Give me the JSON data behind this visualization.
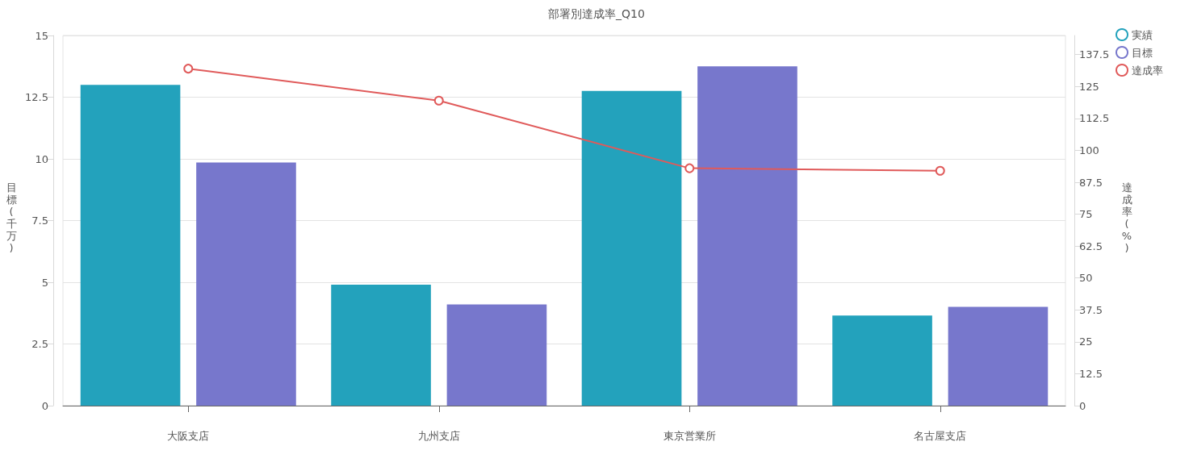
{
  "chart_data": {
    "type": "bar",
    "title": "部署別達成率_Q10",
    "ylabel": "目標(千万)",
    "y2label": "達成率(%)",
    "categories": [
      "大阪支店",
      "九州支店",
      "東京営業所",
      "名古屋支店"
    ],
    "series": [
      {
        "name": "実績",
        "color": "#23a2bc",
        "values": [
          13.0,
          4.9,
          12.75,
          3.65
        ]
      },
      {
        "name": "目標",
        "color": "#7777cc",
        "values": [
          9.85,
          4.1,
          13.75,
          4.0
        ]
      },
      {
        "name": "達成率",
        "type": "line",
        "axis": "y2",
        "color": "#e05a5a",
        "values": [
          132,
          119.5,
          93,
          92
        ]
      }
    ],
    "ylim": [
      0,
      15
    ],
    "yticks": [
      0,
      2.5,
      5,
      7.5,
      10,
      12.5,
      15
    ],
    "y2lim": [
      0,
      145
    ],
    "y2ticks": [
      0,
      12.5,
      25,
      37.5,
      50,
      62.5,
      75,
      87.5,
      100,
      112.5,
      125,
      137.5
    ],
    "grid": "y",
    "legend": "top right",
    "marker": "circle",
    "line_style": "solid"
  }
}
